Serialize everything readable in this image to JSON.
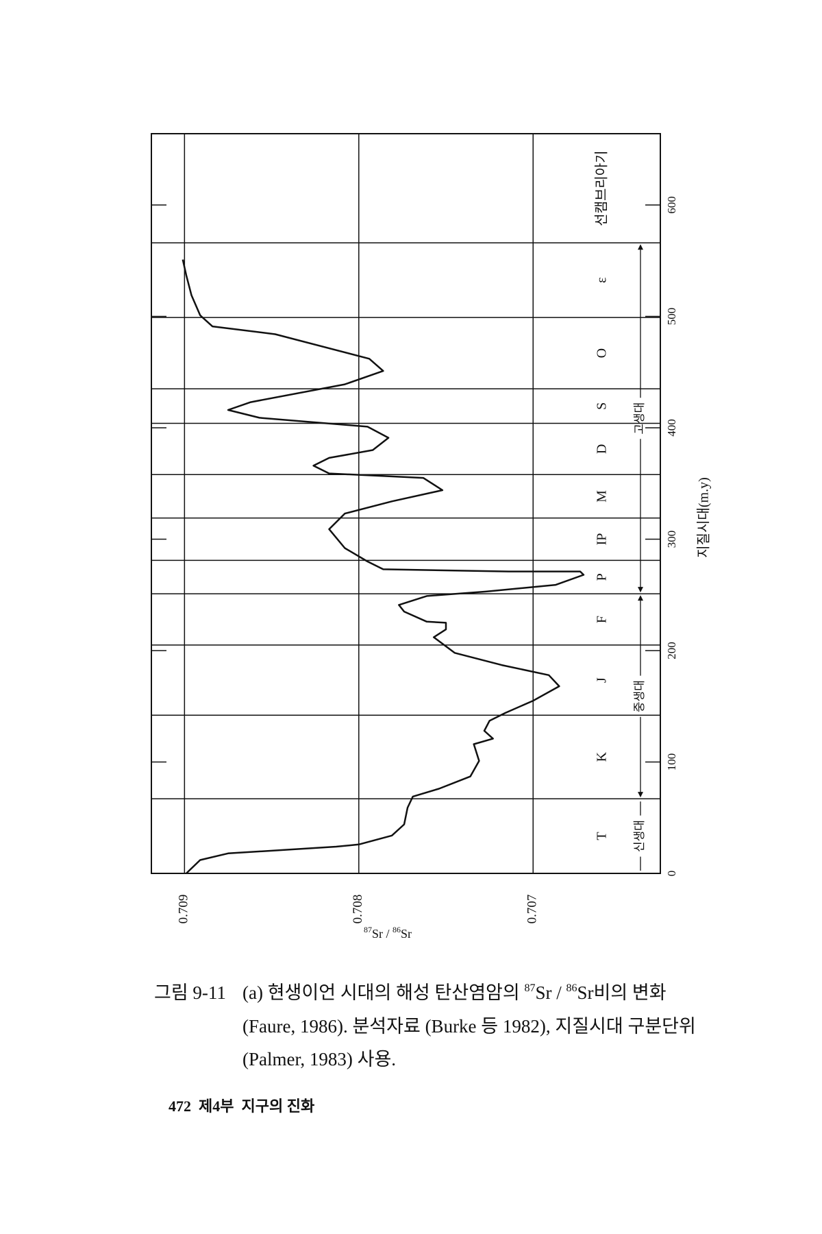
{
  "chart_data": {
    "type": "line",
    "x_label": "지질시대(m.y)",
    "y_label": {
      "sup1": "87",
      "base1": "Sr / ",
      "sup2": "86",
      "base2": "Sr"
    },
    "x": [
      0,
      12,
      18,
      24,
      26,
      34,
      44,
      59,
      69,
      76,
      87,
      101,
      116,
      121,
      128,
      137,
      144,
      155,
      168,
      178,
      187,
      198,
      212,
      219,
      225,
      226,
      235,
      241,
      249,
      253,
      259,
      268,
      271,
      271,
      273,
      280,
      292,
      309,
      323,
      334,
      344,
      355,
      359,
      366,
      373,
      380,
      391,
      401,
      409,
      416,
      423,
      439,
      451,
      462,
      484,
      491,
      501,
      519,
      537,
      551
    ],
    "values": [
      0.70899,
      0.70891,
      0.70875,
      0.70813,
      0.708,
      0.70781,
      0.70774,
      0.70772,
      0.70769,
      0.70754,
      0.70736,
      0.70731,
      0.70734,
      0.70723,
      0.70728,
      0.70725,
      0.70716,
      0.707,
      0.70685,
      0.70691,
      0.70718,
      0.70745,
      0.70757,
      0.7075,
      0.7075,
      0.70761,
      0.70774,
      0.70777,
      0.70761,
      0.70727,
      0.70687,
      0.70671,
      0.70673,
      0.70714,
      0.70786,
      0.70795,
      0.70808,
      0.70817,
      0.70808,
      0.70781,
      0.70752,
      0.70763,
      0.70817,
      0.70826,
      0.70817,
      0.70792,
      0.70783,
      0.70795,
      0.70857,
      0.70875,
      0.70862,
      0.70808,
      0.70786,
      0.70794,
      0.70848,
      0.70884,
      0.70891,
      0.70896,
      0.70899,
      0.70901
    ],
    "color": "#111111",
    "xlim": [
      0,
      664
    ],
    "xticks": [
      0,
      100,
      200,
      300,
      400,
      500,
      600
    ],
    "ylim": [
      0.70919,
      0.70627
    ],
    "yticks": [
      0.709,
      0.708,
      0.707
    ],
    "grid": true,
    "period_boundaries": [
      67,
      142,
      205,
      251,
      281,
      319,
      358,
      404,
      435,
      499,
      566
    ],
    "periods": [
      "T",
      "K",
      "J",
      "F",
      "P",
      "IP",
      "M",
      "D",
      "S",
      "O",
      "ε",
      "선캠브리아기"
    ],
    "eras": [
      "신생대",
      "중생대",
      "고생대"
    ]
  },
  "caption": {
    "label": "그림 9-11",
    "line1": {
      "a": "(a) 현생이언 시대의 해성 탄산염암의 ",
      "sup1": "87",
      "b": "Sr / ",
      "sup2": "86",
      "c": "Sr비의 변화"
    },
    "line2": "(Faure, 1986). 분석자료 (Burke 등 1982), 지질시대 구분단위",
    "line3": "(Palmer, 1983) 사용."
  },
  "footer": "472  제4부  지구의 진화"
}
